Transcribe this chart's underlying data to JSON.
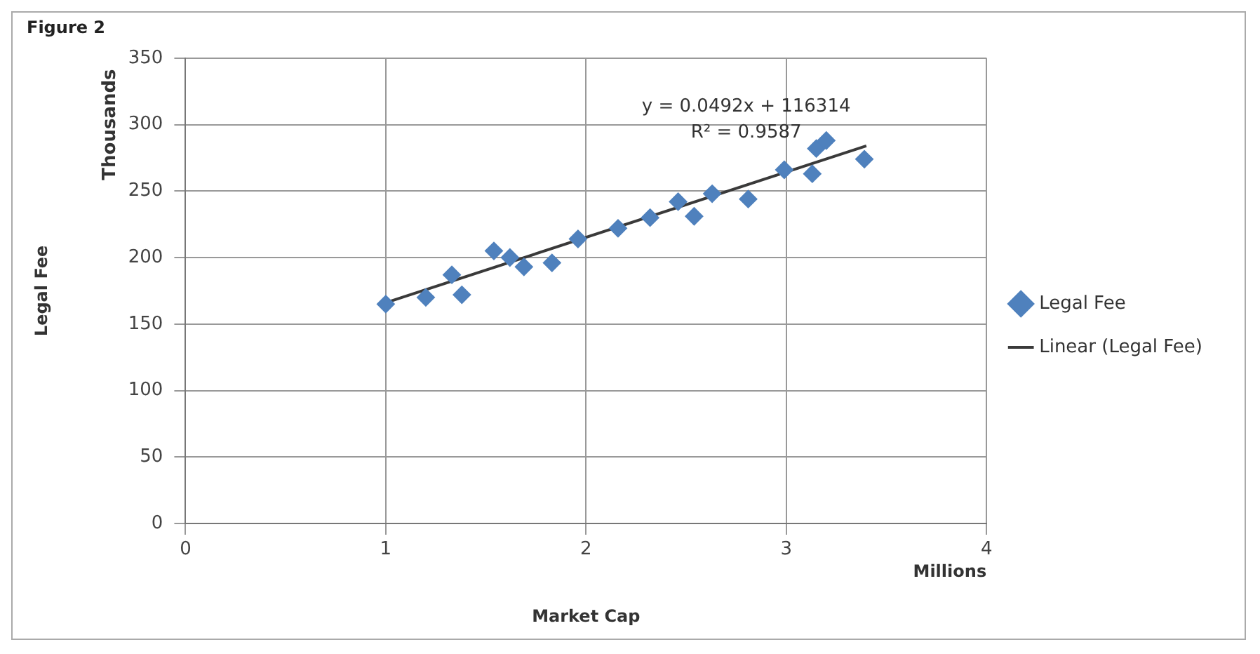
{
  "chart_data": {
    "type": "scatter",
    "title": "Figure 2",
    "xlabel": "Market Cap",
    "ylabel": "Legal Fee",
    "annotations": [
      "Thousands",
      "Millions",
      "y = 0.0492x + 116314",
      "R² = 0.9587"
    ],
    "series": [
      {
        "name": "Legal Fee",
        "color": "#4f81bd",
        "marker": "diamond",
        "x": [
          1.0,
          1.2,
          1.33,
          1.38,
          1.54,
          1.62,
          1.69,
          1.83,
          1.96,
          2.16,
          2.32,
          2.46,
          2.54,
          2.63,
          2.81,
          2.99,
          3.13,
          3.15,
          3.2,
          3.39
        ],
        "values": [
          165,
          170,
          187,
          172,
          205,
          200,
          193,
          196,
          214,
          222,
          230,
          242,
          231,
          248,
          244,
          266,
          263,
          282,
          288,
          274
        ]
      },
      {
        "name": "Linear (Legal Fee)",
        "type": "line",
        "color": "#3a3a3a",
        "marker": "none",
        "x": [
          1.0,
          3.4
        ],
        "values": [
          166,
          284
        ]
      }
    ],
    "xlim": [
      0,
      4
    ],
    "xticks": [
      0,
      1,
      2,
      3,
      4
    ],
    "ylim": [
      0,
      350
    ],
    "yticks": [
      0,
      50,
      100,
      150,
      200,
      250,
      300,
      350
    ],
    "grid": true,
    "legend": "right"
  }
}
